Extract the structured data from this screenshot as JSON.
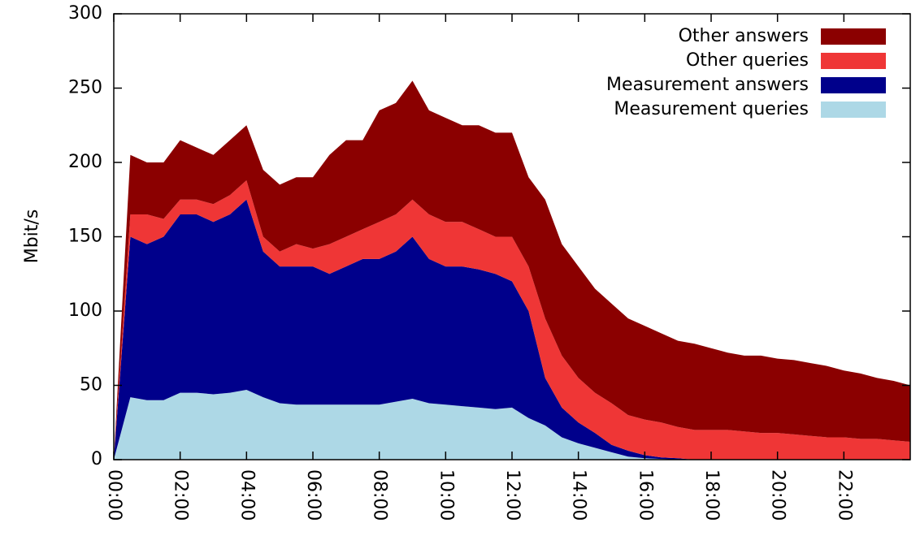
{
  "chart_data": {
    "type": "stacked_area",
    "y_label": "Mbit/s",
    "x": [
      0,
      0.5,
      1,
      1.5,
      2,
      2.5,
      3,
      3.5,
      4,
      4.5,
      5,
      5.5,
      6,
      6.5,
      7,
      7.5,
      8,
      8.5,
      9,
      9.5,
      10,
      10.5,
      11,
      11.5,
      12,
      12.5,
      13,
      13.5,
      14,
      14.5,
      15,
      15.5,
      16,
      16.5,
      17,
      17.5,
      18,
      18.5,
      19,
      19.5,
      20,
      20.5,
      21,
      21.5,
      22,
      22.5,
      23,
      23.5,
      24
    ],
    "xlim": [
      0,
      24
    ],
    "xticks": [
      {
        "value": 0,
        "label": "00:00"
      },
      {
        "value": 2,
        "label": "02:00"
      },
      {
        "value": 4,
        "label": "04:00"
      },
      {
        "value": 6,
        "label": "06:00"
      },
      {
        "value": 8,
        "label": "08:00"
      },
      {
        "value": 10,
        "label": "10:00"
      },
      {
        "value": 12,
        "label": "12:00"
      },
      {
        "value": 14,
        "label": "14:00"
      },
      {
        "value": 16,
        "label": "16:00"
      },
      {
        "value": 18,
        "label": "18:00"
      },
      {
        "value": 20,
        "label": "20:00"
      },
      {
        "value": 22,
        "label": "22:00"
      }
    ],
    "ylim": [
      0,
      300
    ],
    "yticks": [
      0,
      50,
      100,
      150,
      200,
      250,
      300
    ],
    "legend": "top-right",
    "series": [
      {
        "name": "Measurement queries",
        "color": "#add8e6",
        "values": [
          0,
          42,
          40,
          40,
          45,
          45,
          44,
          45,
          47,
          42,
          38,
          37,
          37,
          37,
          37,
          37,
          37,
          39,
          41,
          38,
          37,
          36,
          35,
          34,
          35,
          28,
          23,
          15,
          11,
          8,
          5,
          2,
          1,
          0.5,
          0,
          0,
          0,
          0,
          0,
          0,
          0,
          0,
          0,
          0,
          0,
          0,
          0,
          0,
          0
        ]
      },
      {
        "name": "Measurement answers",
        "color": "#00008b",
        "values": [
          0,
          108,
          105,
          110,
          120,
          120,
          116,
          120,
          128,
          98,
          92,
          93,
          93,
          88,
          93,
          98,
          98,
          101,
          109,
          97,
          93,
          94,
          93,
          91,
          85,
          72,
          32,
          20,
          14,
          10,
          5,
          4,
          2,
          1,
          1,
          0,
          0,
          0,
          0,
          0,
          0,
          0,
          0,
          0,
          0,
          0,
          0,
          0,
          0
        ]
      },
      {
        "name": "Other queries",
        "color": "#ef3636",
        "values": [
          0,
          15,
          20,
          12,
          10,
          10,
          12,
          13,
          13,
          10,
          10,
          15,
          12,
          20,
          20,
          20,
          25,
          25,
          25,
          30,
          30,
          30,
          27,
          25,
          30,
          30,
          40,
          35,
          30,
          27,
          28,
          24,
          24,
          23.5,
          21,
          20,
          20,
          20,
          19,
          18,
          18,
          17,
          16,
          15,
          15,
          14,
          14,
          13,
          12
        ]
      },
      {
        "name": "Other answers",
        "color": "#8b0000",
        "values": [
          0,
          40,
          35,
          38,
          40,
          35,
          33,
          37,
          37,
          45,
          45,
          45,
          48,
          60,
          65,
          60,
          75,
          75,
          80,
          70,
          70,
          65,
          70,
          70,
          70,
          60,
          80,
          75,
          75,
          70,
          67,
          65,
          63,
          60,
          58,
          58,
          55,
          52,
          51,
          52,
          50,
          50,
          49,
          48,
          45,
          44,
          41,
          40,
          38
        ]
      }
    ]
  }
}
